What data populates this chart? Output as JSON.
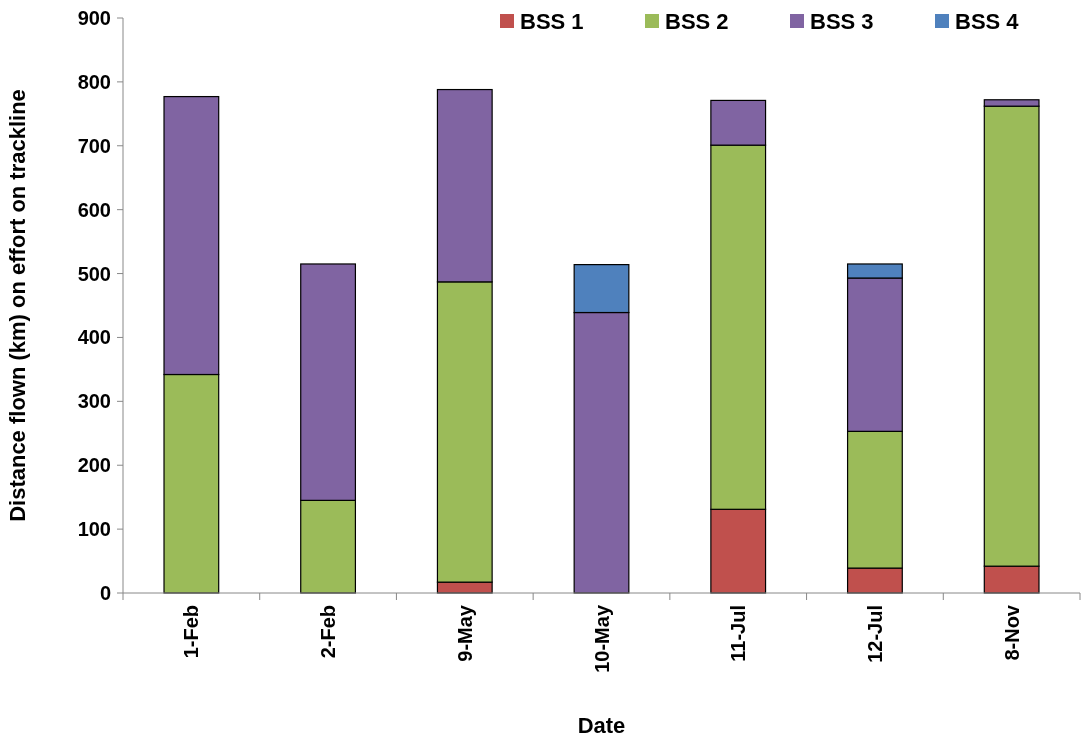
{
  "chart_data": {
    "type": "bar",
    "stacked": true,
    "xlabel": "Date",
    "ylabel": "Distance flown (km) on effort on trackline",
    "categories": [
      "1-Feb",
      "2-Feb",
      "9-May",
      "10-May",
      "11-Jul",
      "12-Jul",
      "8-Nov"
    ],
    "series": [
      {
        "name": "BSS 1",
        "color": "#c0504d",
        "values": [
          0,
          0,
          17,
          null,
          131,
          39,
          42
        ]
      },
      {
        "name": "BSS 2",
        "color": "#9bbb59",
        "values": [
          342,
          145,
          470,
          0,
          570,
          214,
          720
        ]
      },
      {
        "name": "BSS 3",
        "color": "#8064a2",
        "values": [
          435,
          370,
          301,
          439,
          70,
          240,
          10
        ]
      },
      {
        "name": "BSS 4",
        "color": "#4f81bd",
        "values": [
          0,
          0,
          0,
          75,
          0,
          22,
          0
        ]
      }
    ],
    "ylim": [
      0,
      900
    ],
    "yticks": [
      0,
      100,
      200,
      300,
      400,
      500,
      600,
      700,
      800,
      900
    ],
    "grid": false,
    "legend": "top right"
  }
}
